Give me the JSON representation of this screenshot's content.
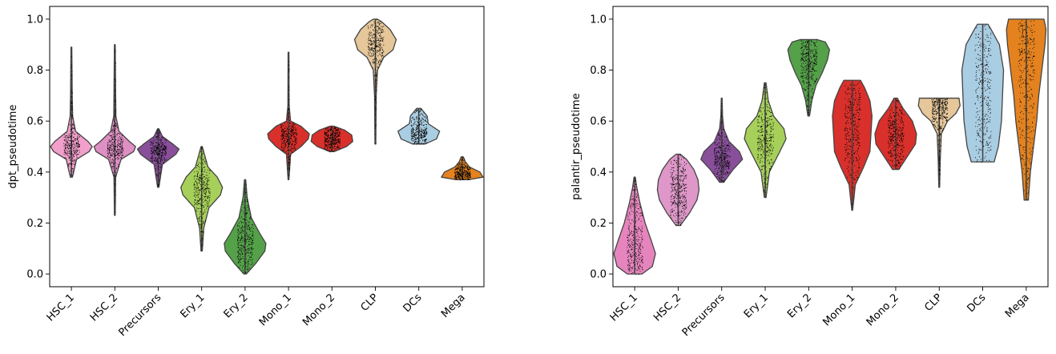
{
  "chart_data": [
    {
      "type": "violin",
      "ylabel": "dpt_pseudotime",
      "xlabel": "",
      "ylim": [
        -0.05,
        1.05
      ],
      "yticks": [
        "0.0",
        "0.2",
        "0.4",
        "0.6",
        "0.8",
        "1.0"
      ],
      "categories": [
        "HSC_1",
        "HSC_2",
        "Precursors",
        "Ery_1",
        "Ery_2",
        "Mono_1",
        "Mono_2",
        "CLP",
        "DCs",
        "Mega"
      ],
      "colors": [
        "#f2a0cb",
        "#de8fc3",
        "#8a4f9b",
        "#a6d05a",
        "#55a14a",
        "#d9302b",
        "#d9302b",
        "#e6c79a",
        "#a9cde2",
        "#e4821f"
      ],
      "groups": [
        {
          "name": "HSC_1",
          "min": 0.38,
          "max": 0.89,
          "median": 0.5,
          "profile": [
            [
              0.38,
              0.05
            ],
            [
              0.45,
              0.25
            ],
            [
              0.48,
              0.85
            ],
            [
              0.5,
              1.0
            ],
            [
              0.52,
              0.8
            ],
            [
              0.56,
              0.2
            ],
            [
              0.62,
              0.06
            ],
            [
              0.7,
              0.04
            ],
            [
              0.89,
              0.02
            ]
          ]
        },
        {
          "name": "HSC_2",
          "min": 0.23,
          "max": 0.9,
          "median": 0.49,
          "profile": [
            [
              0.23,
              0.02
            ],
            [
              0.38,
              0.04
            ],
            [
              0.45,
              0.3
            ],
            [
              0.48,
              0.9
            ],
            [
              0.5,
              1.0
            ],
            [
              0.52,
              0.7
            ],
            [
              0.56,
              0.2
            ],
            [
              0.62,
              0.05
            ],
            [
              0.9,
              0.02
            ]
          ]
        },
        {
          "name": "Precursors",
          "min": 0.34,
          "max": 0.57,
          "median": 0.48,
          "profile": [
            [
              0.34,
              0.03
            ],
            [
              0.43,
              0.2
            ],
            [
              0.47,
              0.85
            ],
            [
              0.49,
              1.0
            ],
            [
              0.51,
              0.7
            ],
            [
              0.54,
              0.2
            ],
            [
              0.57,
              0.03
            ]
          ]
        },
        {
          "name": "Ery_1",
          "min": 0.09,
          "max": 0.5,
          "median": 0.33,
          "profile": [
            [
              0.09,
              0.03
            ],
            [
              0.18,
              0.1
            ],
            [
              0.26,
              0.35
            ],
            [
              0.31,
              0.9
            ],
            [
              0.34,
              1.0
            ],
            [
              0.38,
              0.75
            ],
            [
              0.42,
              0.3
            ],
            [
              0.5,
              0.03
            ]
          ]
        },
        {
          "name": "Ery_2",
          "min": 0.0,
          "max": 0.37,
          "median": 0.1,
          "profile": [
            [
              0.0,
              0.06
            ],
            [
              0.04,
              0.5
            ],
            [
              0.09,
              0.95
            ],
            [
              0.12,
              1.0
            ],
            [
              0.16,
              0.7
            ],
            [
              0.22,
              0.3
            ],
            [
              0.3,
              0.1
            ],
            [
              0.37,
              0.03
            ]
          ]
        },
        {
          "name": "Mono_1",
          "min": 0.37,
          "max": 0.87,
          "median": 0.54,
          "profile": [
            [
              0.37,
              0.02
            ],
            [
              0.47,
              0.1
            ],
            [
              0.5,
              0.6
            ],
            [
              0.53,
              0.95
            ],
            [
              0.55,
              1.0
            ],
            [
              0.58,
              0.6
            ],
            [
              0.6,
              0.1
            ],
            [
              0.66,
              0.03
            ],
            [
              0.87,
              0.02
            ]
          ]
        },
        {
          "name": "Mono_2",
          "min": 0.48,
          "max": 0.58,
          "median": 0.53,
          "profile": [
            [
              0.48,
              0.1
            ],
            [
              0.5,
              0.7
            ],
            [
              0.52,
              1.0
            ],
            [
              0.545,
              0.95
            ],
            [
              0.565,
              0.6
            ],
            [
              0.58,
              0.1
            ]
          ]
        },
        {
          "name": "CLP",
          "min": 0.51,
          "max": 1.0,
          "median": 0.91,
          "profile": [
            [
              0.51,
              0.02
            ],
            [
              0.7,
              0.04
            ],
            [
              0.8,
              0.1
            ],
            [
              0.85,
              0.4
            ],
            [
              0.88,
              0.85
            ],
            [
              0.92,
              1.0
            ],
            [
              0.96,
              0.7
            ],
            [
              0.99,
              0.3
            ],
            [
              1.0,
              0.1
            ]
          ]
        },
        {
          "name": "DCs",
          "min": 0.51,
          "max": 0.65,
          "median": 0.56,
          "profile": [
            [
              0.51,
              0.3
            ],
            [
              0.53,
              0.85
            ],
            [
              0.56,
              1.0
            ],
            [
              0.59,
              0.45
            ],
            [
              0.62,
              0.4
            ],
            [
              0.65,
              0.1
            ]
          ]
        },
        {
          "name": "Mega",
          "min": 0.37,
          "max": 0.46,
          "median": 0.39,
          "profile": [
            [
              0.37,
              0.3
            ],
            [
              0.38,
              1.0
            ],
            [
              0.4,
              0.85
            ],
            [
              0.42,
              0.35
            ],
            [
              0.44,
              0.15
            ],
            [
              0.46,
              0.05
            ]
          ]
        }
      ]
    },
    {
      "type": "violin",
      "ylabel": "palantir_pseudotime",
      "xlabel": "",
      "ylim": [
        -0.05,
        1.05
      ],
      "yticks": [
        "0.0",
        "0.2",
        "0.4",
        "0.6",
        "0.8",
        "1.0"
      ],
      "categories": [
        "HSC_1",
        "HSC_2",
        "Precursors",
        "Ery_1",
        "Ery_2",
        "Mono_1",
        "Mono_2",
        "CLP",
        "DCs",
        "Mega"
      ],
      "colors": [
        "#e685bd",
        "#de97c8",
        "#8a4f9b",
        "#a6d05a",
        "#55a14a",
        "#d9302b",
        "#d9302b",
        "#e6c79a",
        "#a9cde2",
        "#e4821f"
      ],
      "groups": [
        {
          "name": "HSC_1",
          "min": 0.0,
          "max": 0.38,
          "median": 0.1,
          "profile": [
            [
              0.0,
              0.35
            ],
            [
              0.03,
              0.85
            ],
            [
              0.08,
              1.0
            ],
            [
              0.13,
              0.8
            ],
            [
              0.2,
              0.5
            ],
            [
              0.28,
              0.25
            ],
            [
              0.34,
              0.1
            ],
            [
              0.38,
              0.03
            ]
          ]
        },
        {
          "name": "HSC_2",
          "min": 0.19,
          "max": 0.47,
          "median": 0.33,
          "profile": [
            [
              0.19,
              0.1
            ],
            [
              0.24,
              0.55
            ],
            [
              0.29,
              0.9
            ],
            [
              0.33,
              1.0
            ],
            [
              0.37,
              0.95
            ],
            [
              0.41,
              0.75
            ],
            [
              0.45,
              0.4
            ],
            [
              0.47,
              0.1
            ]
          ]
        },
        {
          "name": "Precursors",
          "min": 0.36,
          "max": 0.69,
          "median": 0.46,
          "profile": [
            [
              0.36,
              0.1
            ],
            [
              0.41,
              0.55
            ],
            [
              0.45,
              1.0
            ],
            [
              0.48,
              0.85
            ],
            [
              0.52,
              0.35
            ],
            [
              0.57,
              0.1
            ],
            [
              0.62,
              0.04
            ],
            [
              0.69,
              0.02
            ]
          ]
        },
        {
          "name": "Ery_1",
          "min": 0.3,
          "max": 0.75,
          "median": 0.54,
          "profile": [
            [
              0.3,
              0.04
            ],
            [
              0.4,
              0.2
            ],
            [
              0.48,
              0.7
            ],
            [
              0.53,
              1.0
            ],
            [
              0.57,
              0.9
            ],
            [
              0.62,
              0.4
            ],
            [
              0.68,
              0.15
            ],
            [
              0.75,
              0.04
            ]
          ]
        },
        {
          "name": "Ery_2",
          "min": 0.62,
          "max": 0.92,
          "median": 0.84,
          "profile": [
            [
              0.62,
              0.04
            ],
            [
              0.68,
              0.15
            ],
            [
              0.74,
              0.35
            ],
            [
              0.79,
              0.65
            ],
            [
              0.84,
              0.9
            ],
            [
              0.88,
              1.0
            ],
            [
              0.91,
              0.8
            ],
            [
              0.92,
              0.4
            ]
          ]
        },
        {
          "name": "Mono_1",
          "min": 0.25,
          "max": 0.76,
          "median": 0.55,
          "profile": [
            [
              0.25,
              0.02
            ],
            [
              0.35,
              0.15
            ],
            [
              0.42,
              0.55
            ],
            [
              0.48,
              0.85
            ],
            [
              0.55,
              0.9
            ],
            [
              0.62,
              0.95
            ],
            [
              0.68,
              0.85
            ],
            [
              0.73,
              0.6
            ],
            [
              0.76,
              0.4
            ]
          ]
        },
        {
          "name": "Mono_2",
          "min": 0.41,
          "max": 0.69,
          "median": 0.54,
          "profile": [
            [
              0.41,
              0.15
            ],
            [
              0.46,
              0.55
            ],
            [
              0.51,
              0.95
            ],
            [
              0.55,
              1.0
            ],
            [
              0.6,
              0.8
            ],
            [
              0.65,
              0.35
            ],
            [
              0.69,
              0.08
            ]
          ]
        },
        {
          "name": "CLP",
          "min": 0.34,
          "max": 0.69,
          "median": 0.65,
          "profile": [
            [
              0.34,
              0.02
            ],
            [
              0.45,
              0.05
            ],
            [
              0.55,
              0.1
            ],
            [
              0.6,
              0.4
            ],
            [
              0.63,
              0.8
            ],
            [
              0.66,
              1.0
            ],
            [
              0.69,
              0.95
            ]
          ]
        },
        {
          "name": "DCs",
          "min": 0.44,
          "max": 0.98,
          "median": 0.72,
          "profile": [
            [
              0.44,
              0.55
            ],
            [
              0.5,
              0.75
            ],
            [
              0.6,
              0.9
            ],
            [
              0.7,
              0.95
            ],
            [
              0.8,
              1.0
            ],
            [
              0.9,
              0.8
            ],
            [
              0.96,
              0.4
            ],
            [
              0.98,
              0.25
            ]
          ]
        },
        {
          "name": "Mega",
          "min": 0.29,
          "max": 1.0,
          "median": 0.75,
          "profile": [
            [
              0.29,
              0.1
            ],
            [
              0.4,
              0.2
            ],
            [
              0.5,
              0.35
            ],
            [
              0.6,
              0.5
            ],
            [
              0.7,
              0.6
            ],
            [
              0.8,
              0.75
            ],
            [
              0.9,
              0.9
            ],
            [
              0.96,
              0.95
            ],
            [
              1.0,
              0.85
            ]
          ]
        }
      ]
    }
  ]
}
